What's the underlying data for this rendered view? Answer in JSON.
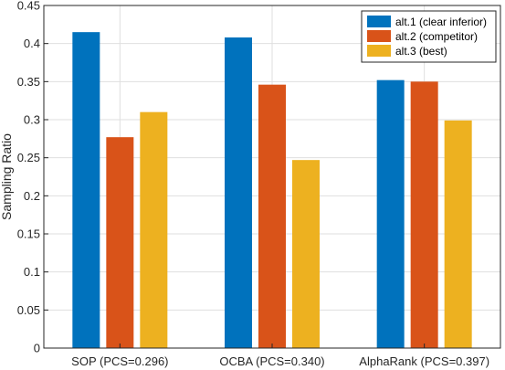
{
  "chart_data": {
    "type": "bar",
    "title": "",
    "xlabel": "",
    "ylabel": "Sampling Ratio",
    "ylim": [
      0,
      0.45
    ],
    "yticks": [
      "0",
      "0.05",
      "0.1",
      "0.15",
      "0.2",
      "0.25",
      "0.3",
      "0.35",
      "0.4",
      "0.45"
    ],
    "grid": true,
    "legend_position": "top-right",
    "categories": [
      "SOP (PCS=0.296)",
      "OCBA (PCS=0.340)",
      "AlphaRank (PCS=0.397)"
    ],
    "series": [
      {
        "name": "alt.1 (clear inferior)",
        "color": "#0072BD",
        "values": [
          0.415,
          0.408,
          0.352
        ]
      },
      {
        "name": "alt.2 (competitor)",
        "color": "#D95319",
        "values": [
          0.277,
          0.346,
          0.35
        ]
      },
      {
        "name": "alt.3 (best)",
        "color": "#EDB120",
        "values": [
          0.31,
          0.247,
          0.299
        ]
      }
    ]
  }
}
